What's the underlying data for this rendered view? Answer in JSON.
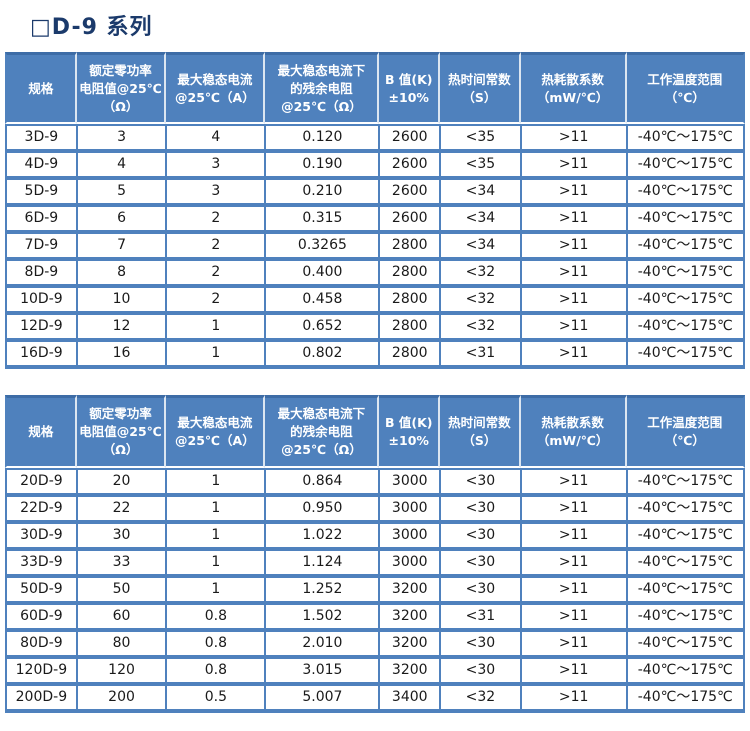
{
  "page": {
    "title": "□D-9 系列"
  },
  "colors": {
    "header_bg": "#4f81bd",
    "header_text": "#ffffff",
    "border": "#4f81bd",
    "title_text": "#1b3a6b",
    "body_text": "#1a1a1a",
    "row_bg": "#ffffff"
  },
  "tables": [
    {
      "headers": [
        {
          "lines": [
            "规格"
          ]
        },
        {
          "lines": [
            "额定零功率",
            "电阻值@25℃",
            "（Ω）"
          ]
        },
        {
          "lines": [
            "最大稳态电流",
            "@25℃（A）"
          ]
        },
        {
          "lines": [
            "最大稳态电流下",
            "的残余电阻",
            "@25℃（Ω）"
          ]
        },
        {
          "lines": [
            "B 值(K)",
            "±10%"
          ]
        },
        {
          "lines": [
            "热时间常数",
            "（S）"
          ]
        },
        {
          "lines": [
            "热耗散系数",
            "（mW/℃）"
          ]
        },
        {
          "lines": [
            "工作温度范围",
            "（℃）"
          ]
        }
      ],
      "rows": [
        [
          "3D-9",
          "3",
          "4",
          "0.120",
          "2600",
          "<35",
          ">11",
          "-40℃～175℃"
        ],
        [
          "4D-9",
          "4",
          "3",
          "0.190",
          "2600",
          "<35",
          ">11",
          "-40℃～175℃"
        ],
        [
          "5D-9",
          "5",
          "3",
          "0.210",
          "2600",
          "<34",
          ">11",
          "-40℃～175℃"
        ],
        [
          "6D-9",
          "6",
          "2",
          "0.315",
          "2600",
          "<34",
          ">11",
          "-40℃～175℃"
        ],
        [
          "7D-9",
          "7",
          "2",
          "0.3265",
          "2800",
          "<34",
          ">11",
          "-40℃～175℃"
        ],
        [
          "8D-9",
          "8",
          "2",
          "0.400",
          "2800",
          "<32",
          ">11",
          "-40℃～175℃"
        ],
        [
          "10D-9",
          "10",
          "2",
          "0.458",
          "2800",
          "<32",
          ">11",
          "-40℃～175℃"
        ],
        [
          "12D-9",
          "12",
          "1",
          "0.652",
          "2800",
          "<32",
          ">11",
          "-40℃～175℃"
        ],
        [
          "16D-9",
          "16",
          "1",
          "0.802",
          "2800",
          "<31",
          ">11",
          "-40℃～175℃"
        ]
      ]
    },
    {
      "headers": [
        {
          "lines": [
            "规格"
          ]
        },
        {
          "lines": [
            "额定零功率",
            "电阻值@25℃",
            "（Ω）"
          ]
        },
        {
          "lines": [
            "最大稳态电流",
            "@25℃（A）"
          ]
        },
        {
          "lines": [
            "最大稳态电流下",
            "的残余电阻",
            "@25℃（Ω）"
          ]
        },
        {
          "lines": [
            "B 值(K)",
            "±10%"
          ]
        },
        {
          "lines": [
            "热时间常数",
            "（S）"
          ]
        },
        {
          "lines": [
            "热耗散系数",
            "（mW/℃）"
          ]
        },
        {
          "lines": [
            "工作温度范围",
            "（℃）"
          ]
        }
      ],
      "rows": [
        [
          "20D-9",
          "20",
          "1",
          "0.864",
          "3000",
          "<30",
          ">11",
          "-40℃～175℃"
        ],
        [
          "22D-9",
          "22",
          "1",
          "0.950",
          "3000",
          "<30",
          ">11",
          "-40℃～175℃"
        ],
        [
          "30D-9",
          "30",
          "1",
          "1.022",
          "3000",
          "<30",
          ">11",
          "-40℃～175℃"
        ],
        [
          "33D-9",
          "33",
          "1",
          "1.124",
          "3000",
          "<30",
          ">11",
          "-40℃～175℃"
        ],
        [
          "50D-9",
          "50",
          "1",
          "1.252",
          "3200",
          "<30",
          ">11",
          "-40℃～175℃"
        ],
        [
          "60D-9",
          "60",
          "0.8",
          "1.502",
          "3200",
          "<31",
          ">11",
          "-40℃～175℃"
        ],
        [
          "80D-9",
          "80",
          "0.8",
          "2.010",
          "3200",
          "<30",
          ">11",
          "-40℃～175℃"
        ],
        [
          "120D-9",
          "120",
          "0.8",
          "3.015",
          "3200",
          "<30",
          ">11",
          "-40℃～175℃"
        ],
        [
          "200D-9",
          "200",
          "0.5",
          "5.007",
          "3400",
          "<32",
          ">11",
          "-40℃～175℃"
        ]
      ]
    }
  ]
}
